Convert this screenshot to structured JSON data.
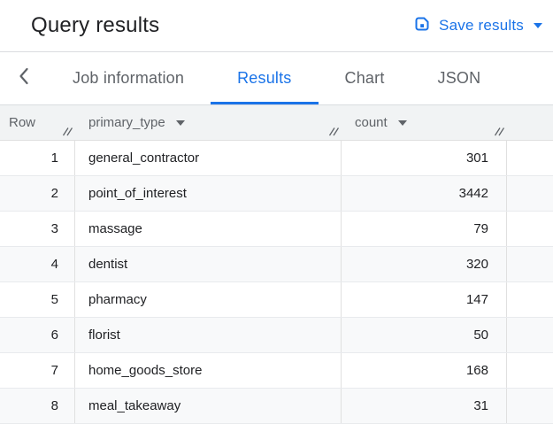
{
  "titlebar": {
    "title": "Query results",
    "save": {
      "label": "Save results"
    }
  },
  "tabs": {
    "items": [
      {
        "label": "Job information",
        "active": false
      },
      {
        "label": "Results",
        "active": true
      },
      {
        "label": "Chart",
        "active": false
      },
      {
        "label": "JSON",
        "active": false
      }
    ]
  },
  "table": {
    "columns": [
      {
        "label": "Row",
        "sortable": false
      },
      {
        "label": "primary_type",
        "sortable": true
      },
      {
        "label": "count",
        "sortable": true
      }
    ],
    "rows": [
      {
        "row": 1,
        "primary_type": "general_contractor",
        "count": 301
      },
      {
        "row": 2,
        "primary_type": "point_of_interest",
        "count": 3442
      },
      {
        "row": 3,
        "primary_type": "massage",
        "count": 79
      },
      {
        "row": 4,
        "primary_type": "dentist",
        "count": 320
      },
      {
        "row": 5,
        "primary_type": "pharmacy",
        "count": 147
      },
      {
        "row": 6,
        "primary_type": "florist",
        "count": 50
      },
      {
        "row": 7,
        "primary_type": "home_goods_store",
        "count": 168
      },
      {
        "row": 8,
        "primary_type": "meal_takeaway",
        "count": 31
      }
    ]
  },
  "colors": {
    "accent_blue": "#1a73e8",
    "text_dark": "#202124",
    "text_gray": "#5f6368",
    "header_bg": "#f1f3f4",
    "stripe_bg": "#f8f9fa",
    "border": "#dadce0"
  }
}
